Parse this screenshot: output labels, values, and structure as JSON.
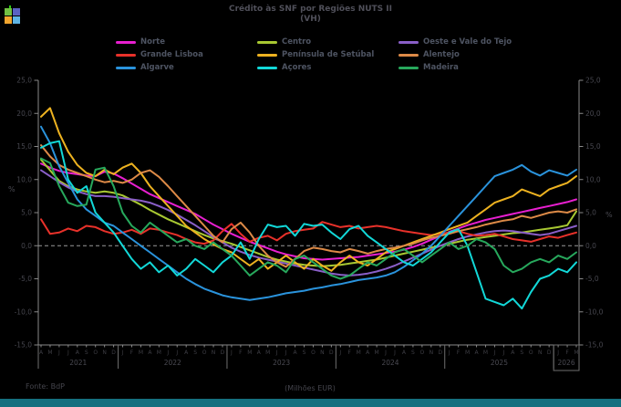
{
  "title": {
    "line1": "Crédito às SNF por Regiões NUTS II",
    "line2": "(VH)"
  },
  "logo": {
    "colors": {
      "top_left": "#72c043",
      "top_right": "#5a62c2",
      "bottom_left": "#f2a52e",
      "bottom_right": "#5fb4e4",
      "tab": "#2fd312"
    }
  },
  "legend": [
    {
      "label": "Norte",
      "color": "#e81fd0"
    },
    {
      "label": "Centro",
      "color": "#a8c832"
    },
    {
      "label": "Oeste e Vale do Tejo",
      "color": "#8a5fc8"
    },
    {
      "label": "Grande Lisboa",
      "color": "#e8312a"
    },
    {
      "label": "Península de Setúbal",
      "color": "#edb220"
    },
    {
      "label": "Alentejo",
      "color": "#dd8a47"
    },
    {
      "label": "Algarve",
      "color": "#2a93dc"
    },
    {
      "label": "Açores",
      "color": "#12d8d8"
    },
    {
      "label": "Madeira",
      "color": "#27a85c"
    }
  ],
  "footer": {
    "source": "Fonte: BdP",
    "unit": "(Milhões EUR)"
  },
  "colors": {
    "background": "#000000",
    "bottom_bar": "#15707f"
  },
  "chart_data": {
    "type": "line",
    "title": "Crédito às SNF por Regiões NUTS II (VH)",
    "ylabel_left": "%",
    "ylabel_right": "%",
    "ylim": [
      -15,
      25
    ],
    "ytick_step": 5,
    "ytick_labels": [
      "25,0",
      "20,0",
      "15,0",
      "10,0",
      "5,0",
      "0,0",
      "-5,0",
      "-10,0",
      "-15,0"
    ],
    "zero_line": "dashed",
    "grid": false,
    "legend_position": "top",
    "x_months": [
      "A",
      "M",
      "J",
      "J",
      "A",
      "S",
      "O",
      "N",
      "D",
      "J",
      "F",
      "M",
      "A",
      "M",
      "J",
      "J",
      "A",
      "S",
      "O",
      "N",
      "D",
      "J",
      "F",
      "M",
      "A",
      "M",
      "J",
      "J",
      "A",
      "S",
      "O",
      "N",
      "D",
      "J",
      "F",
      "M",
      "A",
      "M",
      "J",
      "J",
      "A",
      "S",
      "O",
      "N",
      "D",
      "J",
      "F",
      "M",
      "A",
      "M",
      "J",
      "J",
      "A",
      "S",
      "O",
      "N",
      "D",
      "J",
      "F",
      "M"
    ],
    "x_years": [
      {
        "label": "2021",
        "span": 9
      },
      {
        "label": "2022",
        "span": 12
      },
      {
        "label": "2023",
        "span": 12
      },
      {
        "label": "2024",
        "span": 12
      },
      {
        "label": "2025",
        "span": 12
      },
      {
        "label": "2026",
        "span": 3,
        "boxed": true
      }
    ],
    "series": [
      {
        "name": "Norte",
        "color": "#e81fd0",
        "values": [
          12.4,
          11.8,
          11.3,
          11.0,
          10.8,
          10.6,
          10.5,
          11.2,
          10.9,
          10.2,
          9.4,
          8.6,
          7.8,
          7.2,
          6.6,
          6.0,
          5.4,
          4.8,
          4.0,
          3.2,
          2.5,
          1.8,
          1.2,
          0.6,
          0.1,
          -0.4,
          -0.9,
          -1.3,
          -1.6,
          -1.9,
          -2.0,
          -2.1,
          -2.0,
          -1.9,
          -1.8,
          -1.7,
          -1.5,
          -1.3,
          -1.1,
          -0.9,
          -0.6,
          -0.2,
          0.3,
          0.9,
          1.5,
          2.1,
          2.6,
          3.1,
          3.5,
          3.9,
          4.2,
          4.5,
          4.8,
          5.1,
          5.4,
          5.7,
          6.0,
          6.3,
          6.6,
          7.0
        ]
      },
      {
        "name": "Centro",
        "color": "#a8c832",
        "values": [
          13.0,
          11.4,
          9.8,
          9.0,
          8.5,
          8.2,
          8.0,
          8.2,
          8.0,
          7.6,
          6.9,
          6.2,
          5.4,
          4.7,
          4.0,
          3.4,
          2.8,
          2.2,
          1.6,
          1.1,
          0.7,
          0.3,
          -0.2,
          -0.7,
          -1.2,
          -1.7,
          -2.1,
          -2.4,
          -2.7,
          -2.9,
          -3.0,
          -3.1,
          -3.0,
          -2.9,
          -2.7,
          -2.5,
          -2.3,
          -2.1,
          -1.8,
          -1.5,
          -1.2,
          -0.9,
          -0.6,
          -0.3,
          0.0,
          0.3,
          0.6,
          0.9,
          1.1,
          1.3,
          1.5,
          1.7,
          1.9,
          2.0,
          2.2,
          2.4,
          2.6,
          2.8,
          3.1,
          5.2
        ]
      },
      {
        "name": "Oeste e Vale do Tejo",
        "color": "#8a5fc8",
        "values": [
          11.4,
          10.5,
          9.6,
          8.8,
          8.2,
          7.8,
          7.5,
          7.5,
          7.4,
          7.2,
          7.0,
          6.8,
          6.5,
          6.0,
          5.4,
          4.7,
          3.9,
          3.1,
          2.2,
          1.3,
          0.5,
          -0.3,
          -0.9,
          -1.4,
          -1.8,
          -2.1,
          -2.4,
          -2.7,
          -3.0,
          -3.3,
          -3.6,
          -3.9,
          -4.2,
          -4.4,
          -4.5,
          -4.4,
          -4.2,
          -3.9,
          -3.5,
          -3.0,
          -2.4,
          -1.8,
          -1.2,
          -0.6,
          0.0,
          0.5,
          1.0,
          1.4,
          1.7,
          2.0,
          2.2,
          2.3,
          2.2,
          2.0,
          1.8,
          1.6,
          1.8,
          2.2,
          2.6,
          3.0
        ]
      },
      {
        "name": "Grande Lisboa",
        "color": "#e8312a",
        "values": [
          4.0,
          1.8,
          2.0,
          2.6,
          2.2,
          3.0,
          2.8,
          2.2,
          1.8,
          2.0,
          2.4,
          1.8,
          2.6,
          2.4,
          2.0,
          1.6,
          1.0,
          0.5,
          0.3,
          0.8,
          2.2,
          3.3,
          1.8,
          0.6,
          1.2,
          1.5,
          0.8,
          1.8,
          2.2,
          2.4,
          2.6,
          3.6,
          3.2,
          2.8,
          3.0,
          2.6,
          2.8,
          3.0,
          2.8,
          2.5,
          2.2,
          2.0,
          1.8,
          1.6,
          1.8,
          2.0,
          2.2,
          1.8,
          1.5,
          1.6,
          1.8,
          1.4,
          1.0,
          0.8,
          0.6,
          1.0,
          1.4,
          1.2,
          1.6,
          2.0
        ]
      },
      {
        "name": "Península de Setúbal",
        "color": "#edb220",
        "values": [
          19.5,
          20.8,
          17.0,
          14.2,
          12.2,
          11.0,
          10.5,
          11.5,
          10.8,
          11.8,
          12.4,
          11.0,
          9.0,
          7.5,
          6.0,
          4.5,
          3.0,
          2.0,
          1.0,
          0.2,
          -0.5,
          -1.0,
          -2.0,
          -3.0,
          -2.0,
          -3.5,
          -2.5,
          -1.5,
          -2.5,
          -3.5,
          -2.0,
          -3.0,
          -3.8,
          -2.5,
          -1.5,
          -2.5,
          -3.0,
          -2.0,
          -1.0,
          -0.5,
          0.0,
          0.5,
          1.0,
          1.5,
          2.0,
          2.5,
          3.0,
          3.5,
          4.5,
          5.5,
          6.5,
          7.0,
          7.5,
          8.5,
          8.0,
          7.5,
          8.5,
          9.0,
          9.5,
          10.5
        ]
      },
      {
        "name": "Alentejo",
        "color": "#dd8a47",
        "values": [
          15.2,
          13.5,
          12.2,
          11.5,
          11.0,
          10.5,
          10.0,
          9.6,
          9.8,
          9.5,
          10.0,
          11.0,
          11.4,
          10.4,
          9.0,
          7.5,
          6.0,
          4.5,
          3.0,
          1.5,
          0.5,
          2.5,
          3.5,
          2.0,
          0.0,
          -1.5,
          -2.5,
          -3.2,
          -2.0,
          -0.8,
          -0.3,
          -0.5,
          -0.8,
          -1.0,
          -0.5,
          -0.8,
          -1.2,
          -0.8,
          -0.5,
          -0.3,
          0.0,
          0.3,
          0.8,
          1.2,
          1.5,
          1.8,
          2.2,
          2.5,
          2.8,
          3.2,
          3.5,
          3.8,
          4.0,
          4.5,
          4.2,
          4.6,
          5.0,
          5.2,
          5.0,
          5.5
        ]
      },
      {
        "name": "Algarve",
        "color": "#2a93dc",
        "values": [
          18.0,
          15.5,
          12.0,
          9.5,
          7.0,
          5.5,
          4.5,
          3.5,
          3.0,
          2.0,
          1.0,
          0.0,
          -1.0,
          -2.0,
          -3.0,
          -4.0,
          -5.0,
          -5.8,
          -6.5,
          -7.0,
          -7.5,
          -7.8,
          -8.0,
          -8.2,
          -8.0,
          -7.8,
          -7.5,
          -7.2,
          -7.0,
          -6.8,
          -6.5,
          -6.3,
          -6.0,
          -5.8,
          -5.5,
          -5.2,
          -5.0,
          -4.8,
          -4.5,
          -4.0,
          -3.2,
          -2.2,
          -1.2,
          0.0,
          1.5,
          3.0,
          4.5,
          6.0,
          7.5,
          9.0,
          10.5,
          11.0,
          11.5,
          12.2,
          11.2,
          10.6,
          11.4,
          11.0,
          10.6,
          11.5
        ]
      },
      {
        "name": "Açores",
        "color": "#12d8d8",
        "values": [
          14.8,
          15.5,
          15.8,
          10.0,
          8.0,
          9.0,
          5.0,
          3.5,
          2.0,
          0.0,
          -2.0,
          -3.5,
          -2.5,
          -4.0,
          -3.0,
          -4.5,
          -3.5,
          -2.0,
          -3.0,
          -4.0,
          -2.5,
          -1.5,
          0.5,
          -2.0,
          1.0,
          3.2,
          2.8,
          3.0,
          1.5,
          3.3,
          3.0,
          3.2,
          2.0,
          1.0,
          2.5,
          3.0,
          1.5,
          0.5,
          -0.5,
          -1.5,
          -2.5,
          -3.0,
          -2.0,
          -1.0,
          0.5,
          2.0,
          2.5,
          0.0,
          -4.0,
          -8.0,
          -8.5,
          -9.0,
          -8.0,
          -9.5,
          -7.0,
          -5.0,
          -4.5,
          -3.5,
          -4.0,
          -2.5
        ]
      },
      {
        "name": "Madeira",
        "color": "#27a85c",
        "values": [
          13.2,
          12.5,
          9.0,
          6.5,
          6.0,
          6.2,
          11.5,
          11.8,
          9.0,
          5.0,
          3.0,
          2.0,
          3.5,
          2.5,
          1.5,
          0.5,
          1.0,
          0.0,
          -0.5,
          0.5,
          -0.5,
          -1.5,
          -3.0,
          -4.5,
          -3.5,
          -2.5,
          -3.0,
          -4.0,
          -2.0,
          -1.5,
          -2.5,
          -3.5,
          -4.5,
          -5.0,
          -4.5,
          -3.5,
          -2.5,
          -3.0,
          -2.0,
          -1.0,
          -0.5,
          -1.5,
          -2.5,
          -1.5,
          -0.5,
          0.5,
          -0.5,
          0.0,
          1.0,
          0.5,
          -0.5,
          -3.0,
          -4.0,
          -3.5,
          -2.5,
          -2.0,
          -2.5,
          -1.5,
          -2.0,
          -1.0
        ]
      }
    ]
  }
}
